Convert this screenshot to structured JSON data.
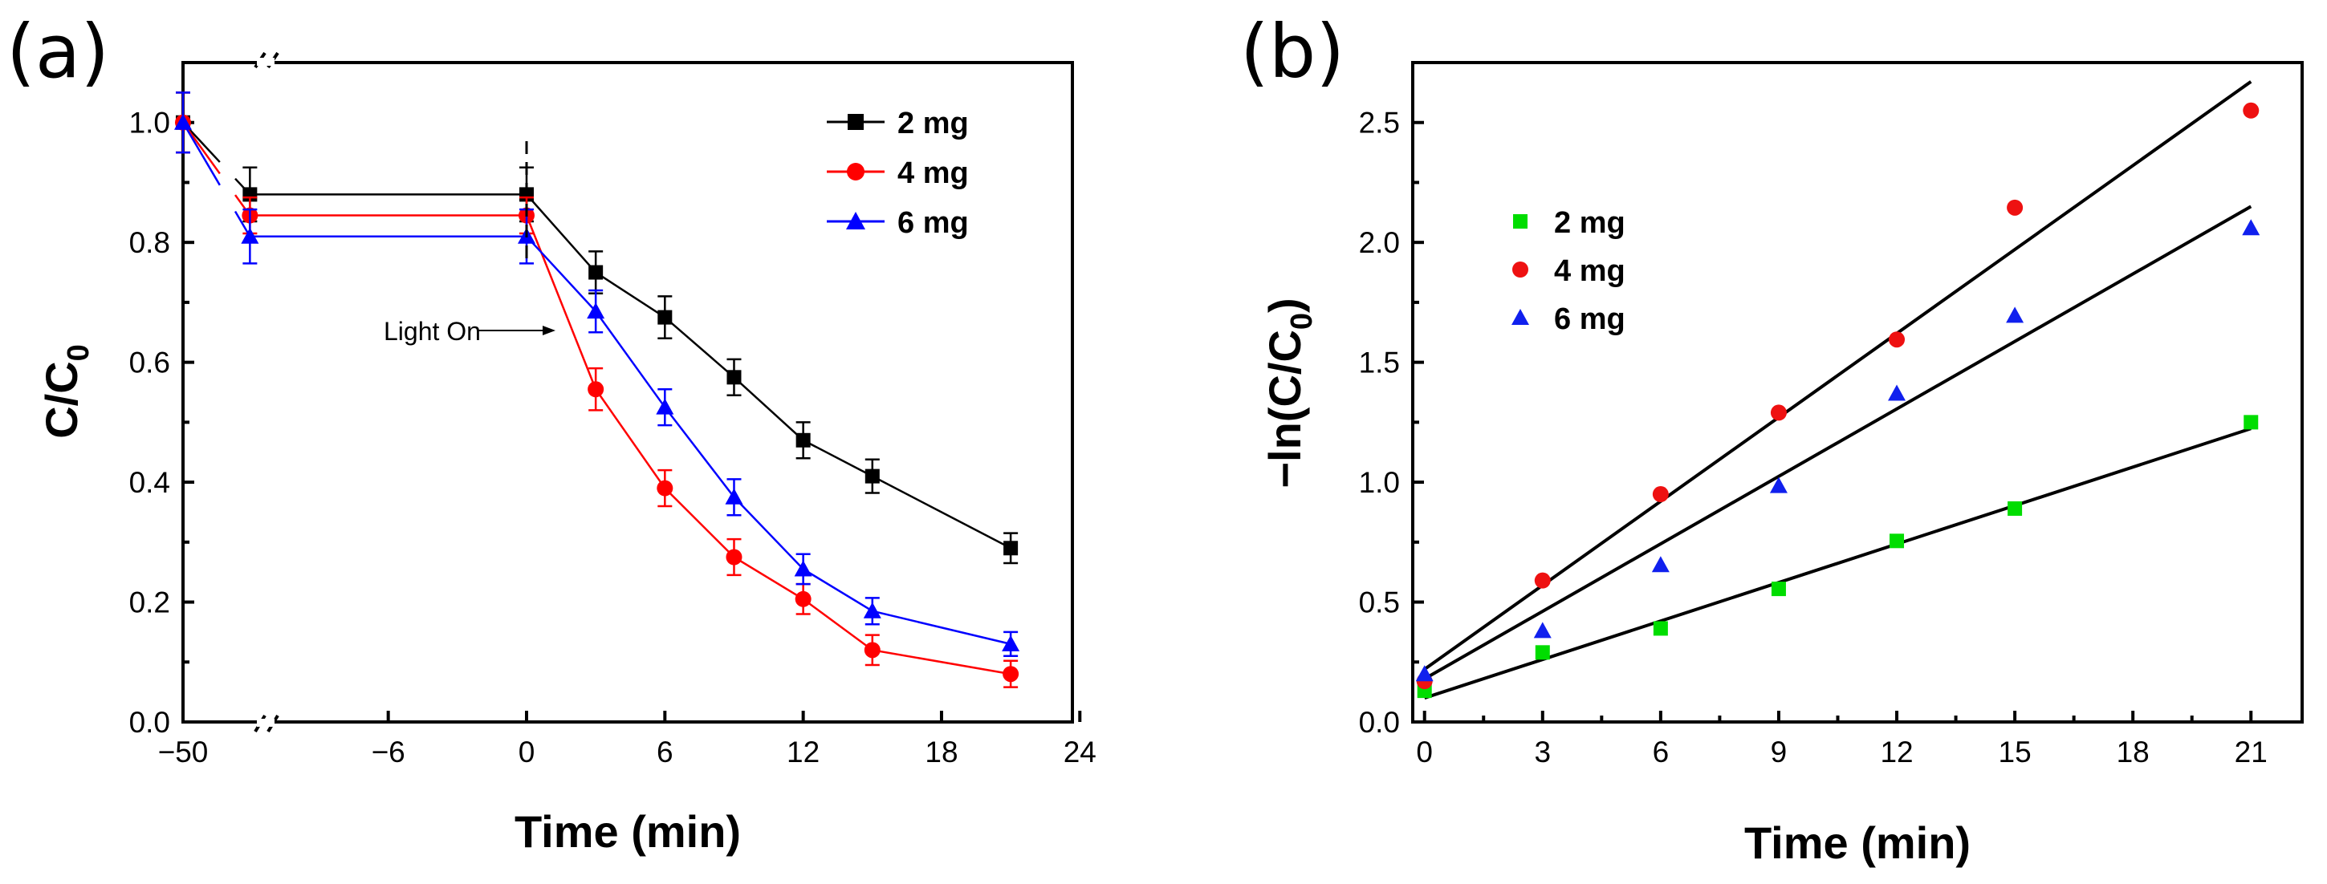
{
  "colors": {
    "2 mg_a": "#000000",
    "4 mg_a": "#ff0000",
    "6 mg_a": "#0000ff",
    "2 mg_b": "#00dd00",
    "4 mg_b": "#ee1111",
    "6 mg_b": "#1020ee",
    "fit": "#000000"
  },
  "chart_data": [
    {
      "panel": "(a)",
      "type": "line",
      "xlabel": "Time (min)",
      "ylabel_main": "C/C",
      "ylabel_sub": "0",
      "x_tick_labels": [
        "−50",
        "−6",
        "0",
        "6",
        "12",
        "18",
        "24"
      ],
      "y_tick_labels": [
        "0.0",
        "0.2",
        "0.4",
        "0.6",
        "0.8",
        "1.0"
      ],
      "ylim": [
        0,
        1.1
      ],
      "x_axis_break": true,
      "legend_position": "top-right",
      "annotation": "Light On",
      "series": [
        {
          "name": "2 mg",
          "marker": "square",
          "x": [
            -50,
            -12,
            0,
            3,
            6,
            9,
            12,
            15,
            21
          ],
          "y": [
            1.0,
            0.88,
            0.88,
            0.75,
            0.675,
            0.575,
            0.47,
            0.41,
            0.29
          ],
          "err": [
            0.05,
            0.045,
            0.045,
            0.035,
            0.035,
            0.03,
            0.03,
            0.028,
            0.025
          ]
        },
        {
          "name": "4 mg",
          "marker": "circle",
          "x": [
            -50,
            -12,
            0,
            3,
            6,
            9,
            12,
            15,
            21
          ],
          "y": [
            1.0,
            0.845,
            0.845,
            0.555,
            0.39,
            0.275,
            0.205,
            0.12,
            0.08
          ],
          "err": [
            0.05,
            0.03,
            0.03,
            0.035,
            0.03,
            0.03,
            0.025,
            0.025,
            0.022
          ]
        },
        {
          "name": "6 mg",
          "marker": "triangle",
          "x": [
            -50,
            -12,
            0,
            3,
            6,
            9,
            12,
            15,
            21
          ],
          "y": [
            1.0,
            0.81,
            0.81,
            0.685,
            0.525,
            0.375,
            0.255,
            0.185,
            0.13
          ],
          "err": [
            0.05,
            0.045,
            0.045,
            0.035,
            0.03,
            0.03,
            0.025,
            0.022,
            0.02
          ]
        }
      ]
    },
    {
      "panel": "(b)",
      "type": "scatter",
      "xlabel": "Time (min)",
      "ylabel_main": "−ln(C/C",
      "ylabel_sub": "0",
      "ylabel_end": ")",
      "x_ticks": [
        0,
        3,
        6,
        9,
        12,
        15,
        18,
        21
      ],
      "y_ticks": [
        0.0,
        0.5,
        1.0,
        1.5,
        2.0,
        2.5
      ],
      "xlim": [
        -0.3,
        22.3
      ],
      "ylim": [
        0,
        2.75
      ],
      "legend_position": "top-left",
      "series": [
        {
          "name": "2 mg",
          "marker": "square",
          "x": [
            0,
            3,
            6,
            9,
            12,
            15,
            21
          ],
          "y": [
            0.13,
            0.29,
            0.39,
            0.555,
            0.755,
            0.89,
            1.25
          ],
          "fit": {
            "intercept": 0.1,
            "slope": 0.0535
          }
        },
        {
          "name": "4 mg",
          "marker": "circle",
          "x": [
            0,
            3,
            6,
            9,
            12,
            15,
            21
          ],
          "y": [
            0.17,
            0.59,
            0.95,
            1.29,
            1.595,
            2.145,
            2.55
          ],
          "fit": {
            "intercept": 0.22,
            "slope": 0.1167
          }
        },
        {
          "name": "6 mg",
          "marker": "triangle",
          "x": [
            0,
            3,
            6,
            9,
            12,
            15,
            21
          ],
          "y": [
            0.2,
            0.38,
            0.655,
            0.985,
            1.37,
            1.695,
            2.06
          ],
          "fit": {
            "intercept": 0.18,
            "slope": 0.0938
          }
        }
      ]
    }
  ]
}
